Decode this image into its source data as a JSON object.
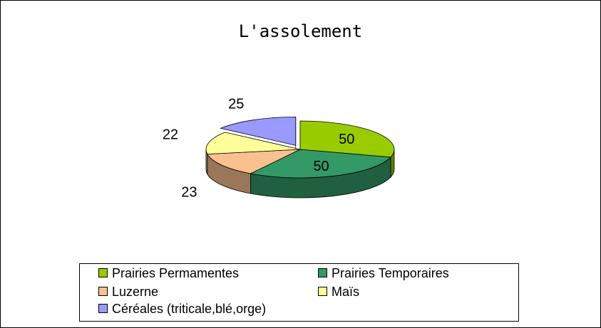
{
  "chart_data": {
    "type": "pie",
    "title": "L'assolement",
    "legend_position": "bottom",
    "categories": [
      "Prairies Permamentes",
      "Prairies Temporaires",
      "Luzerne",
      "Maïs",
      "Céréales (triticale,blé,orge)"
    ],
    "values": [
      50,
      50,
      23,
      22,
      25
    ],
    "colors": [
      "#99cc00",
      "#339966",
      "#fac090",
      "#ffff99",
      "#9999ff"
    ],
    "exploded": "Céréales (triticale,blé,orge)",
    "style": "3d"
  }
}
